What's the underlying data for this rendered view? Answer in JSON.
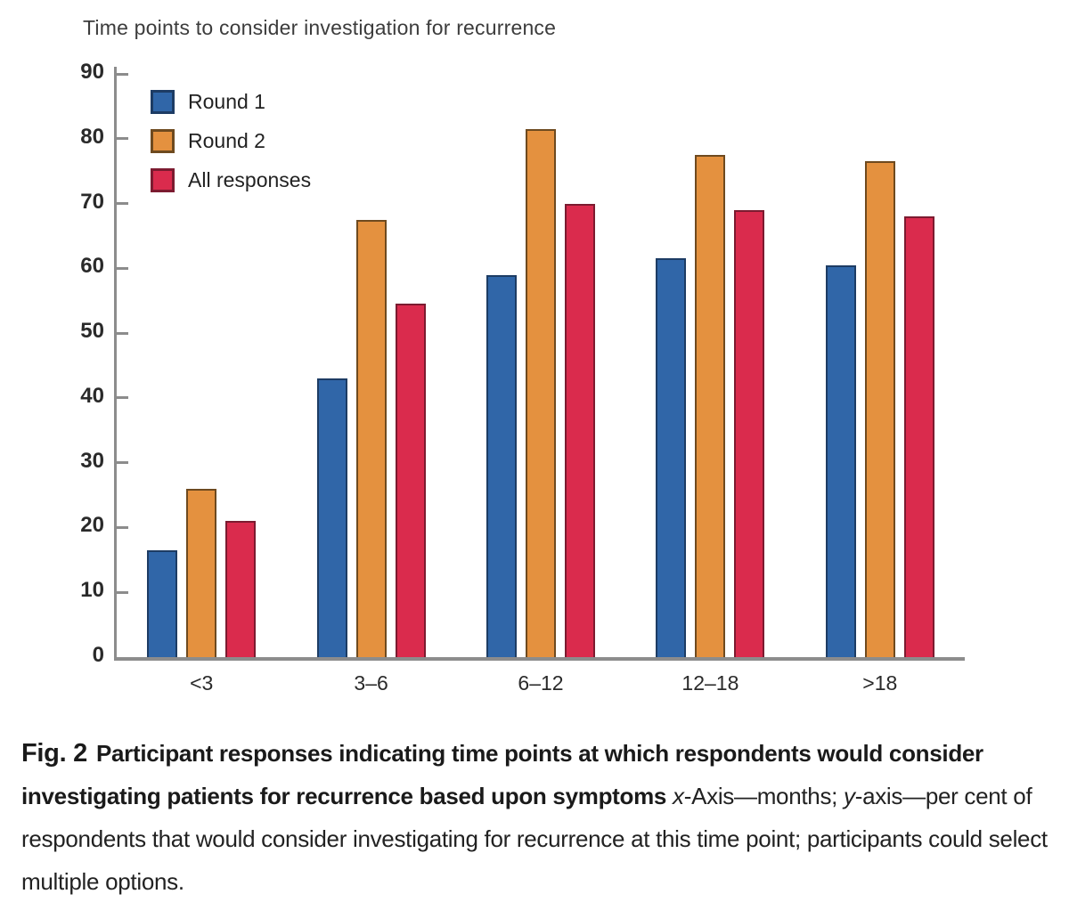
{
  "chart": {
    "title": "Time points to consider investigation for recurrence"
  },
  "chart_data": {
    "type": "bar",
    "title": "Time points to consider investigation for recurrence",
    "categories": [
      "<3",
      "3–6",
      "6–12",
      "12–18",
      ">18"
    ],
    "series": [
      {
        "name": "Round 1",
        "color": "#3066a8",
        "edge_color": "#1d3c64",
        "values": [
          16.5,
          43,
          59,
          61.5,
          60.5
        ]
      },
      {
        "name": "Round 2",
        "color": "#e4913f",
        "edge_color": "#6e4a1f",
        "values": [
          26,
          67.5,
          81.5,
          77.5,
          76.5
        ]
      },
      {
        "name": "All responses",
        "color": "#da2b4d",
        "edge_color": "#7c1b30",
        "values": [
          21,
          54.5,
          70,
          69,
          68
        ]
      }
    ],
    "xlabel": "months",
    "ylabel": "per cent of respondents",
    "ylim": [
      0,
      90
    ],
    "y_ticks": [
      0,
      10,
      20,
      30,
      40,
      50,
      60,
      70,
      80,
      90
    ],
    "grid": false,
    "legend_position": "top-left",
    "axis_color": "#8c8c8c"
  },
  "caption": {
    "fig_label": "Fig. 2",
    "bold_text": "Participant responses indicating time points at which respondents would consider investigating patients for recurrence based upon symptoms",
    "tail": [
      {
        "italic": "x",
        "text": "-Axis—months; "
      },
      {
        "italic": "y",
        "text": "-axis—per cent of respondents that would consider investigating for recurrence at this time point; participants could select multiple options."
      }
    ]
  }
}
